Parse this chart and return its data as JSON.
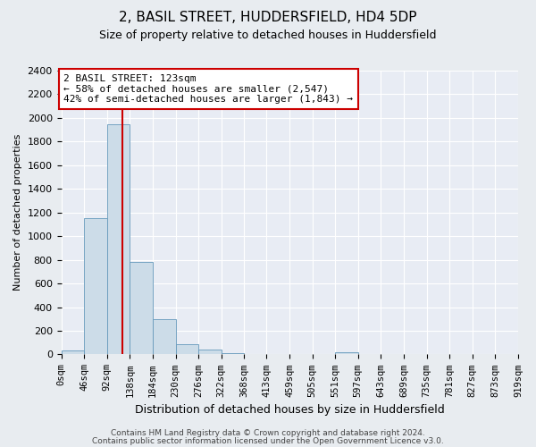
{
  "title": "2, BASIL STREET, HUDDERSFIELD, HD4 5DP",
  "subtitle": "Size of property relative to detached houses in Huddersfield",
  "xlabel": "Distribution of detached houses by size in Huddersfield",
  "ylabel": "Number of detached properties",
  "bin_edges": [
    0,
    46,
    92,
    138,
    184,
    230,
    276,
    322,
    368,
    413,
    459,
    505,
    551,
    597,
    643,
    689,
    735,
    781,
    827,
    873,
    919
  ],
  "bar_heights": [
    30,
    1150,
    1950,
    780,
    300,
    90,
    40,
    10,
    5,
    5,
    3,
    2,
    20,
    2,
    1,
    1,
    1,
    1,
    1,
    1
  ],
  "bar_color": "#ccdce8",
  "bar_edge_color": "#6699bb",
  "vline_x": 123,
  "vline_color": "#cc0000",
  "annotation_text": "2 BASIL STREET: 123sqm\n← 58% of detached houses are smaller (2,547)\n42% of semi-detached houses are larger (1,843) →",
  "annotation_box_color": "#ffffff",
  "annotation_box_edge": "#cc0000",
  "ylim": [
    0,
    2400
  ],
  "yticks": [
    0,
    200,
    400,
    600,
    800,
    1000,
    1200,
    1400,
    1600,
    1800,
    2000,
    2200,
    2400
  ],
  "xlim": [
    0,
    919
  ],
  "footer1": "Contains HM Land Registry data © Crown copyright and database right 2024.",
  "footer2": "Contains public sector information licensed under the Open Government Licence v3.0.",
  "bg_color": "#e8ecf0",
  "plot_bg_color": "#e8ecf4",
  "title_fontsize": 11,
  "subtitle_fontsize": 9,
  "ylabel_fontsize": 8,
  "xlabel_fontsize": 9,
  "tick_fontsize": 7.5,
  "ytick_fontsize": 8,
  "annotation_fontsize": 8,
  "footer_fontsize": 6.5
}
